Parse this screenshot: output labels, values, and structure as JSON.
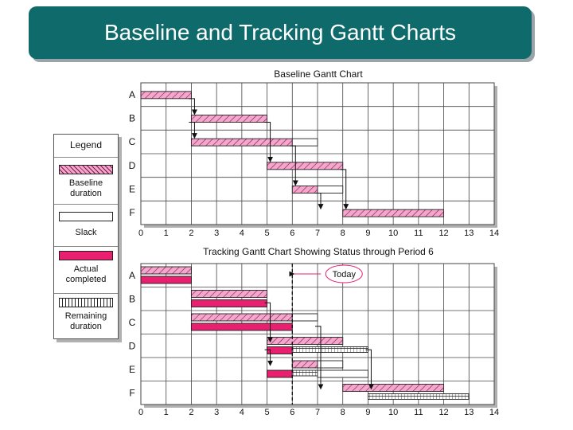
{
  "title": "Baseline and Tracking Gantt Charts",
  "colors": {
    "banner": "#0f6b6b",
    "baseline_fill": "#f4a6cd",
    "actual_fill": "#e8206f",
    "slack_fill": "#ffffff",
    "remaining_fill": "#ffffff"
  },
  "legend": {
    "title": "Legend",
    "items": [
      {
        "key": "baseline",
        "label_lines": [
          "Baseline",
          "duration"
        ]
      },
      {
        "key": "slack",
        "label_lines": [
          "Slack"
        ]
      },
      {
        "key": "actual",
        "label_lines": [
          "Actual",
          "completed"
        ]
      },
      {
        "key": "remaining",
        "label_lines": [
          "Remaining",
          "duration"
        ]
      }
    ]
  },
  "chart_data": [
    {
      "type": "gantt",
      "title": "Baseline Gantt Chart",
      "x_ticks": [
        0,
        1,
        2,
        3,
        4,
        5,
        6,
        7,
        8,
        9,
        10,
        11,
        12,
        13,
        14
      ],
      "x_range": [
        0,
        14
      ],
      "grid": true,
      "tasks": [
        "A",
        "B",
        "C",
        "D",
        "E",
        "F"
      ],
      "bars": [
        {
          "task": "A",
          "kind": "baseline",
          "start": 0,
          "end": 2
        },
        {
          "task": "B",
          "kind": "baseline",
          "start": 2,
          "end": 5
        },
        {
          "task": "C",
          "kind": "baseline",
          "start": 2,
          "end": 6
        },
        {
          "task": "C",
          "kind": "slack",
          "start": 6,
          "end": 7
        },
        {
          "task": "D",
          "kind": "baseline",
          "start": 5,
          "end": 8
        },
        {
          "task": "E",
          "kind": "baseline",
          "start": 6,
          "end": 7
        },
        {
          "task": "E",
          "kind": "slack",
          "start": 7,
          "end": 8
        },
        {
          "task": "F",
          "kind": "baseline",
          "start": 8,
          "end": 12
        }
      ],
      "links": [
        {
          "from": "A",
          "to": "B",
          "at": 2
        },
        {
          "from": "B",
          "to": "C",
          "at": 2
        },
        {
          "from": "B",
          "to": "D",
          "at": 5
        },
        {
          "from": "C",
          "to": "E",
          "at": 6
        },
        {
          "from": "E",
          "to": "F",
          "at": 7
        },
        {
          "from": "D",
          "to": "F",
          "at": 8
        }
      ]
    },
    {
      "type": "gantt",
      "title": "Tracking Gantt Chart Showing Status through Period 6",
      "x_ticks": [
        0,
        1,
        2,
        3,
        4,
        5,
        6,
        7,
        8,
        9,
        10,
        11,
        12,
        13,
        14
      ],
      "x_range": [
        0,
        14
      ],
      "grid": true,
      "today": 6,
      "today_label": "Today",
      "tasks": [
        "A",
        "B",
        "C",
        "D",
        "E",
        "F"
      ],
      "bars": [
        {
          "task": "A",
          "kind": "baseline",
          "start": 0,
          "end": 2
        },
        {
          "task": "A",
          "kind": "actual",
          "start": 0,
          "end": 2
        },
        {
          "task": "B",
          "kind": "baseline",
          "start": 2,
          "end": 5
        },
        {
          "task": "B",
          "kind": "actual",
          "start": 2,
          "end": 5
        },
        {
          "task": "C",
          "kind": "baseline",
          "start": 2,
          "end": 6
        },
        {
          "task": "C",
          "kind": "slack",
          "start": 6,
          "end": 7
        },
        {
          "task": "C",
          "kind": "actual",
          "start": 2,
          "end": 6
        },
        {
          "task": "D",
          "kind": "baseline",
          "start": 5,
          "end": 8
        },
        {
          "task": "D",
          "kind": "actual",
          "start": 5,
          "end": 6
        },
        {
          "task": "D",
          "kind": "remaining",
          "start": 6,
          "end": 9
        },
        {
          "task": "E",
          "kind": "baseline",
          "start": 6,
          "end": 7
        },
        {
          "task": "E",
          "kind": "slack",
          "start": 7,
          "end": 8
        },
        {
          "task": "E",
          "kind": "actual",
          "start": 5,
          "end": 6
        },
        {
          "task": "E",
          "kind": "remaining",
          "start": 6,
          "end": 7
        },
        {
          "task": "E",
          "kind": "slack",
          "start": 7,
          "end": 9
        },
        {
          "task": "F",
          "kind": "baseline",
          "start": 8,
          "end": 12
        },
        {
          "task": "F",
          "kind": "remaining",
          "start": 9,
          "end": 13
        }
      ],
      "links": [
        {
          "from": "B",
          "to": "D",
          "at": 5
        },
        {
          "from": "D",
          "to": "E",
          "at": 5
        },
        {
          "from": "C",
          "to": "F",
          "at": 7
        },
        {
          "from": "D",
          "to": "F",
          "at": 9
        }
      ]
    }
  ]
}
